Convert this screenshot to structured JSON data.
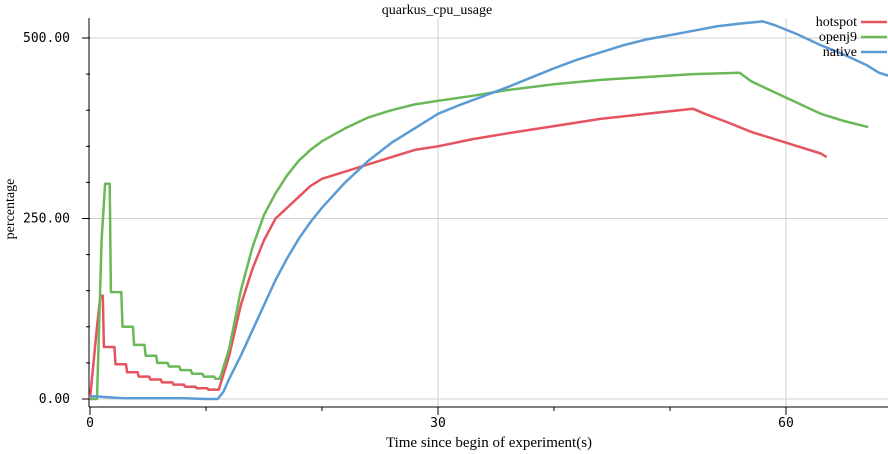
{
  "chart_data": {
    "type": "line",
    "title": "quarkus_cpu_usage",
    "xlabel": "Time since begin of experiment(s)",
    "ylabel": "percentage",
    "xlim": [
      0,
      69
    ],
    "ylim": [
      -5,
      530
    ],
    "x_ticks": [
      0,
      30,
      60
    ],
    "x_minor_ticks": [
      10,
      20,
      40,
      50
    ],
    "y_ticks": [
      0,
      250,
      500
    ],
    "y_tick_labels": [
      "0.00",
      "250.00",
      "500.00"
    ],
    "grid": true,
    "legend_position": "top-right",
    "series": [
      {
        "name": "hotspot",
        "color": "#e5535f",
        "points": [
          [
            0,
            0
          ],
          [
            0.6,
            100
          ],
          [
            0.9,
            143
          ],
          [
            1.1,
            143
          ],
          [
            1.2,
            72
          ],
          [
            2.1,
            72
          ],
          [
            2.2,
            48
          ],
          [
            3.1,
            48
          ],
          [
            3.2,
            37
          ],
          [
            4.1,
            37
          ],
          [
            4.2,
            31
          ],
          [
            5.1,
            31
          ],
          [
            5.2,
            27
          ],
          [
            6.1,
            27
          ],
          [
            6.2,
            23
          ],
          [
            7.1,
            23
          ],
          [
            7.2,
            20
          ],
          [
            8.1,
            20
          ],
          [
            8.2,
            17
          ],
          [
            9.1,
            17
          ],
          [
            9.2,
            15
          ],
          [
            10.1,
            15
          ],
          [
            10.2,
            13
          ],
          [
            11.1,
            13
          ],
          [
            12,
            60
          ],
          [
            13,
            130
          ],
          [
            14,
            180
          ],
          [
            15,
            220
          ],
          [
            16,
            250
          ],
          [
            17,
            265
          ],
          [
            18,
            280
          ],
          [
            19,
            295
          ],
          [
            20,
            305
          ],
          [
            22,
            315
          ],
          [
            24,
            325
          ],
          [
            26,
            335
          ],
          [
            28,
            345
          ],
          [
            30,
            350
          ],
          [
            33,
            360
          ],
          [
            36,
            368
          ],
          [
            40,
            378
          ],
          [
            44,
            388
          ],
          [
            48,
            395
          ],
          [
            52,
            402
          ],
          [
            53,
            395
          ],
          [
            55,
            383
          ],
          [
            57,
            370
          ],
          [
            59,
            360
          ],
          [
            61,
            350
          ],
          [
            63,
            340
          ],
          [
            63.5,
            335
          ]
        ]
      },
      {
        "name": "openj9",
        "color": "#6ab858",
        "points": [
          [
            0,
            0
          ],
          [
            0.6,
            0
          ],
          [
            1.0,
            220
          ],
          [
            1.3,
            298
          ],
          [
            1.7,
            298
          ],
          [
            1.8,
            148
          ],
          [
            2.7,
            148
          ],
          [
            2.8,
            100
          ],
          [
            3.7,
            100
          ],
          [
            3.8,
            75
          ],
          [
            4.7,
            75
          ],
          [
            4.8,
            60
          ],
          [
            5.7,
            60
          ],
          [
            5.8,
            50
          ],
          [
            6.7,
            50
          ],
          [
            6.8,
            45
          ],
          [
            7.7,
            45
          ],
          [
            7.8,
            40
          ],
          [
            8.7,
            40
          ],
          [
            8.8,
            35
          ],
          [
            9.7,
            35
          ],
          [
            9.8,
            31
          ],
          [
            10.7,
            31
          ],
          [
            10.8,
            28
          ],
          [
            11.2,
            28
          ],
          [
            12,
            70
          ],
          [
            13,
            150
          ],
          [
            14,
            210
          ],
          [
            15,
            255
          ],
          [
            16,
            285
          ],
          [
            17,
            310
          ],
          [
            18,
            330
          ],
          [
            19,
            345
          ],
          [
            20,
            357
          ],
          [
            22,
            375
          ],
          [
            24,
            390
          ],
          [
            26,
            400
          ],
          [
            28,
            408
          ],
          [
            30,
            413
          ],
          [
            33,
            420
          ],
          [
            36,
            428
          ],
          [
            40,
            436
          ],
          [
            44,
            442
          ],
          [
            48,
            446
          ],
          [
            52,
            450
          ],
          [
            56,
            452
          ],
          [
            57,
            440
          ],
          [
            59,
            425
          ],
          [
            61,
            410
          ],
          [
            63,
            395
          ],
          [
            65,
            385
          ],
          [
            67,
            377
          ],
          [
            66.9,
            377
          ]
        ]
      },
      {
        "name": "native",
        "color": "#5b9bd5",
        "points": [
          [
            0,
            4
          ],
          [
            1,
            3
          ],
          [
            2,
            2
          ],
          [
            3,
            1
          ],
          [
            4,
            1
          ],
          [
            6,
            1
          ],
          [
            8,
            1
          ],
          [
            10,
            0
          ],
          [
            11,
            0
          ],
          [
            11.5,
            10
          ],
          [
            12,
            28
          ],
          [
            13,
            60
          ],
          [
            14,
            95
          ],
          [
            15,
            130
          ],
          [
            16,
            165
          ],
          [
            17,
            195
          ],
          [
            18,
            222
          ],
          [
            19,
            245
          ],
          [
            20,
            265
          ],
          [
            22,
            300
          ],
          [
            24,
            330
          ],
          [
            26,
            355
          ],
          [
            28,
            375
          ],
          [
            30,
            395
          ],
          [
            32,
            408
          ],
          [
            34,
            420
          ],
          [
            36,
            432
          ],
          [
            38,
            445
          ],
          [
            40,
            458
          ],
          [
            42,
            470
          ],
          [
            44,
            480
          ],
          [
            46,
            490
          ],
          [
            48,
            498
          ],
          [
            50,
            504
          ],
          [
            52,
            510
          ],
          [
            54,
            516
          ],
          [
            56,
            520
          ],
          [
            58,
            523
          ],
          [
            59,
            518
          ],
          [
            61,
            505
          ],
          [
            63,
            490
          ],
          [
            65,
            477
          ],
          [
            67,
            462
          ],
          [
            68,
            452
          ],
          [
            69,
            447
          ]
        ]
      }
    ]
  }
}
